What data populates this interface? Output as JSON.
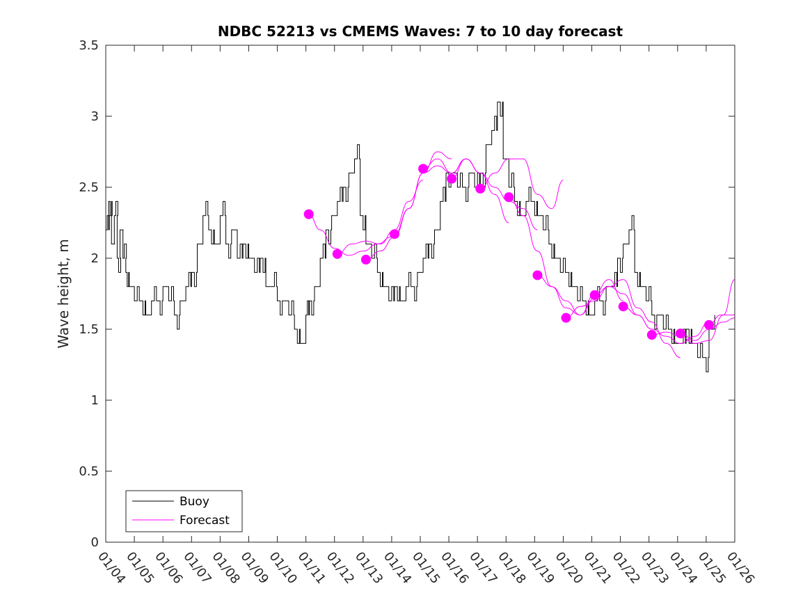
{
  "chart_data": {
    "type": "line",
    "title": "NDBC 52213 vs CMEMS Waves: 7 to 10 day forecast",
    "xlabel": "",
    "ylabel": "Wave height, m",
    "xlim": [
      0,
      22
    ],
    "ylim": [
      0,
      3.5
    ],
    "x_tick_labels": [
      "01/04",
      "01/05",
      "01/06",
      "01/07",
      "01/08",
      "01/09",
      "01/10",
      "01/11",
      "01/12",
      "01/13",
      "01/14",
      "01/15",
      "01/16",
      "01/17",
      "01/18",
      "01/19",
      "01/20",
      "01/21",
      "01/22",
      "01/23",
      "01/24",
      "01/25",
      "01/26"
    ],
    "y_ticks": [
      0,
      0.5,
      1,
      1.5,
      2,
      2.5,
      3,
      3.5
    ],
    "y_tick_labels": [
      "0",
      "0.5",
      "1",
      "1.5",
      "2",
      "2.5",
      "3",
      "3.5"
    ],
    "legend": {
      "position": "bottom-left",
      "entries": [
        {
          "label": "Buoy",
          "color": "#000000"
        },
        {
          "label": "Forecast",
          "color": "#ff00ff"
        }
      ]
    },
    "series": [
      {
        "name": "Buoy",
        "color": "#000000",
        "x": [
          0,
          0.1,
          0.2,
          0.3,
          0.4,
          0.5,
          0.6,
          0.7,
          0.8,
          1.0,
          1.2,
          1.4,
          1.6,
          1.8,
          2.0,
          2.2,
          2.4,
          2.6,
          2.8,
          3.0,
          3.2,
          3.4,
          3.6,
          3.8,
          4.0,
          4.2,
          4.4,
          4.6,
          4.8,
          5.0,
          5.2,
          5.4,
          5.6,
          5.8,
          6.0,
          6.2,
          6.4,
          6.6,
          6.8,
          7.0,
          7.1,
          7.3,
          7.5,
          7.7,
          7.9,
          8.1,
          8.3,
          8.5,
          8.7,
          8.9,
          9.1,
          9.3,
          9.5,
          9.7,
          9.9,
          10.1,
          10.3,
          10.5,
          10.7,
          10.9,
          11.1,
          11.3,
          11.5,
          11.7,
          11.9,
          12.1,
          12.3,
          12.5,
          12.7,
          12.9,
          13.1,
          13.3,
          13.5,
          13.7,
          13.9,
          14.1,
          14.3,
          14.5,
          14.7,
          14.9,
          15.1,
          15.3,
          15.5,
          15.7,
          15.9,
          16.1,
          16.3,
          16.5,
          16.7,
          16.9,
          17.1,
          17.3,
          17.5,
          17.7,
          17.9,
          18.1,
          18.3,
          18.5,
          18.7,
          18.9,
          19.1,
          19.3,
          19.5,
          19.7,
          19.9,
          20.1,
          20.3,
          20.5,
          20.7,
          20.9,
          21.1,
          21.3
        ],
        "y": [
          2.2,
          2.4,
          2.1,
          2.3,
          2.0,
          2.2,
          2.0,
          1.9,
          1.8,
          1.7,
          1.7,
          1.6,
          1.7,
          1.7,
          1.8,
          1.7,
          1.6,
          1.7,
          1.8,
          1.9,
          2.1,
          2.3,
          2.2,
          2.1,
          2.3,
          2.1,
          2.2,
          2.0,
          2.1,
          2.0,
          1.9,
          2.0,
          1.8,
          1.8,
          1.7,
          1.7,
          1.6,
          1.5,
          1.4,
          1.6,
          1.7,
          1.8,
          2.0,
          2.2,
          2.3,
          2.4,
          2.5,
          2.6,
          2.7,
          2.3,
          2.1,
          2.0,
          1.9,
          1.8,
          1.7,
          1.8,
          1.7,
          1.8,
          1.8,
          1.9,
          2.0,
          2.1,
          2.2,
          2.4,
          2.6,
          2.6,
          2.5,
          2.5,
          2.6,
          2.5,
          2.6,
          2.8,
          2.9,
          3.1,
          2.7,
          2.5,
          2.4,
          2.3,
          2.4,
          2.4,
          2.3,
          2.2,
          2.1,
          2.0,
          1.9,
          1.9,
          1.8,
          1.7,
          1.7,
          1.6,
          1.7,
          1.7,
          1.8,
          1.8,
          2.0,
          2.1,
          2.2,
          1.9,
          1.8,
          1.7,
          1.6,
          1.6,
          1.5,
          1.5,
          1.4,
          1.4,
          1.5,
          1.4,
          1.3,
          1.3,
          1.5,
          1.6
        ]
      },
      {
        "name": "Forecast",
        "color": "#ff00ff",
        "runs": [
          {
            "x": [
              7.1,
              7.5,
              8.0,
              8.5,
              9.0,
              9.5,
              10.0
            ],
            "y": [
              2.31,
              2.2,
              2.07,
              2.02,
              2.05,
              2.1,
              2.15
            ]
          },
          {
            "x": [
              8.1,
              8.6,
              9.1,
              9.6,
              10.1,
              10.6,
              11.1
            ],
            "y": [
              2.03,
              2.1,
              2.12,
              2.1,
              2.2,
              2.4,
              2.55
            ]
          },
          {
            "x": [
              9.1,
              9.6,
              10.1,
              10.6,
              11.1,
              11.6,
              12.1
            ],
            "y": [
              1.99,
              2.05,
              2.15,
              2.35,
              2.6,
              2.75,
              2.7
            ]
          },
          {
            "x": [
              10.1,
              10.6,
              11.1,
              11.6,
              12.1,
              12.6,
              13.1
            ],
            "y": [
              2.17,
              2.35,
              2.6,
              2.65,
              2.6,
              2.7,
              2.6
            ]
          },
          {
            "x": [
              11.1,
              11.6,
              12.1,
              12.6,
              13.1,
              13.6,
              14.1
            ],
            "y": [
              2.63,
              2.7,
              2.6,
              2.7,
              2.6,
              2.45,
              2.25
            ]
          },
          {
            "x": [
              12.1,
              12.6,
              13.1,
              13.6,
              14.1,
              14.6,
              15.1
            ],
            "y": [
              2.56,
              2.7,
              2.6,
              2.5,
              2.4,
              2.35,
              2.2
            ]
          },
          {
            "x": [
              13.1,
              13.6,
              14.1,
              14.6,
              15.1,
              15.6,
              16.0
            ],
            "y": [
              2.49,
              2.6,
              2.7,
              2.7,
              2.45,
              2.35,
              2.55
            ]
          },
          {
            "x": [
              14.1,
              14.6,
              15.1,
              15.6,
              16.1,
              16.6,
              17.1
            ],
            "y": [
              2.43,
              2.3,
              2.05,
              1.8,
              1.7,
              1.6,
              1.72
            ]
          },
          {
            "x": [
              15.1,
              15.6,
              16.1,
              16.6,
              17.1,
              17.6,
              18.1
            ],
            "y": [
              1.88,
              1.8,
              1.65,
              1.6,
              1.75,
              1.85,
              1.7
            ]
          },
          {
            "x": [
              16.1,
              16.6,
              17.1,
              17.6,
              18.1,
              18.6,
              19.1
            ],
            "y": [
              1.58,
              1.66,
              1.7,
              1.8,
              1.75,
              1.6,
              1.5
            ]
          },
          {
            "x": [
              17.1,
              17.6,
              18.1,
              18.6,
              19.1,
              19.6,
              20.1
            ],
            "y": [
              1.74,
              1.8,
              1.85,
              1.65,
              1.55,
              1.4,
              1.3
            ]
          },
          {
            "x": [
              18.1,
              18.6,
              19.1,
              19.6,
              20.1,
              20.6,
              21.1
            ],
            "y": [
              1.66,
              1.6,
              1.5,
              1.45,
              1.4,
              1.45,
              1.55
            ]
          },
          {
            "x": [
              19.1,
              19.6,
              20.1,
              20.6,
              21.1,
              21.6,
              22.0
            ],
            "y": [
              1.46,
              1.48,
              1.45,
              1.4,
              1.42,
              1.6,
              1.85
            ]
          },
          {
            "x": [
              20.1,
              20.6,
              21.1,
              21.6,
              22.0
            ],
            "y": [
              1.47,
              1.42,
              1.5,
              1.55,
              1.58
            ]
          },
          {
            "x": [
              21.1,
              21.5,
              22.0
            ],
            "y": [
              1.53,
              1.6,
              1.6
            ]
          }
        ],
        "markers": {
          "x": [
            7.1,
            8.1,
            9.1,
            10.1,
            11.1,
            12.1,
            13.1,
            14.1,
            15.1,
            16.1,
            17.1,
            18.1,
            19.1,
            20.1,
            21.1
          ],
          "y": [
            2.31,
            2.03,
            1.99,
            2.17,
            2.63,
            2.56,
            2.49,
            2.43,
            1.88,
            1.58,
            1.74,
            1.66,
            1.46,
            1.47,
            1.53
          ]
        }
      }
    ]
  }
}
